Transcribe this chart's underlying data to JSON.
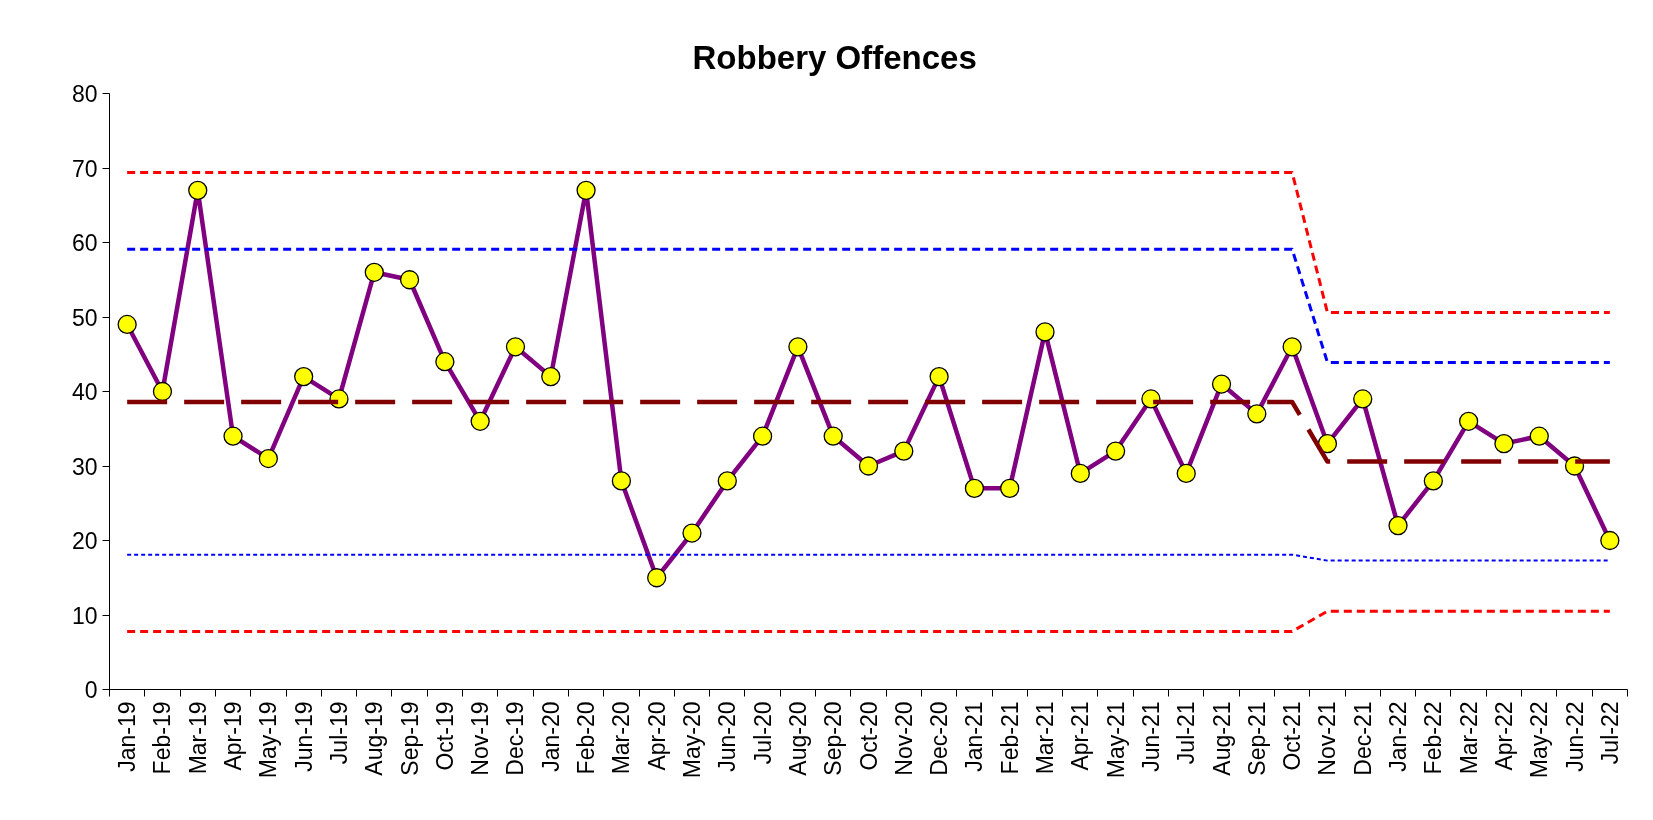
{
  "chart_data": {
    "type": "line",
    "title": "Robbery Offences",
    "categories": [
      "Jan-19",
      "Feb-19",
      "Mar-19",
      "Apr-19",
      "May-19",
      "Jun-19",
      "Jul-19",
      "Aug-19",
      "Sep-19",
      "Oct-19",
      "Nov-19",
      "Dec-19",
      "Jan-20",
      "Feb-20",
      "Mar-20",
      "Apr-20",
      "May-20",
      "Jun-20",
      "Jul-20",
      "Aug-20",
      "Sep-20",
      "Oct-20",
      "Nov-20",
      "Dec-20",
      "Jan-21",
      "Feb-21",
      "Mar-21",
      "Apr-21",
      "May-21",
      "Jun-21",
      "Jul-21",
      "Aug-21",
      "Sep-21",
      "Oct-21",
      "Nov-21",
      "Dec-21",
      "Jan-22",
      "Feb-22",
      "Mar-22",
      "Apr-22",
      "May-22",
      "Jun-22",
      "Jul-22"
    ],
    "series": [
      {
        "color": "#ff0000",
        "line_style": "dashed",
        "values": [
          69.4,
          69.4,
          69.4,
          69.4,
          69.4,
          69.4,
          69.4,
          69.4,
          69.4,
          69.4,
          69.4,
          69.4,
          69.4,
          69.4,
          69.4,
          69.4,
          69.4,
          69.4,
          69.4,
          69.4,
          69.4,
          69.4,
          69.4,
          69.4,
          69.4,
          69.4,
          69.4,
          69.4,
          69.4,
          69.4,
          69.4,
          69.4,
          69.4,
          69.4,
          50.6,
          50.6,
          50.6,
          50.6,
          50.6,
          50.6,
          50.6,
          50.6,
          50.6
        ]
      },
      {
        "color": "#0000ff",
        "line_style": "dashed",
        "values": [
          59.1,
          59.1,
          59.1,
          59.1,
          59.1,
          59.1,
          59.1,
          59.1,
          59.1,
          59.1,
          59.1,
          59.1,
          59.1,
          59.1,
          59.1,
          59.1,
          59.1,
          59.1,
          59.1,
          59.1,
          59.1,
          59.1,
          59.1,
          59.1,
          59.1,
          59.1,
          59.1,
          59.1,
          59.1,
          59.1,
          59.1,
          59.1,
          59.1,
          59.1,
          43.9,
          43.9,
          43.9,
          43.9,
          43.9,
          43.9,
          43.9,
          43.9,
          43.9
        ]
      },
      {
        "color": "#800000",
        "line_style": "dashed",
        "values": [
          38.6,
          38.6,
          38.6,
          38.6,
          38.6,
          38.6,
          38.6,
          38.6,
          38.6,
          38.6,
          38.6,
          38.6,
          38.6,
          38.6,
          38.6,
          38.6,
          38.6,
          38.6,
          38.6,
          38.6,
          38.6,
          38.6,
          38.6,
          38.6,
          38.6,
          38.6,
          38.6,
          38.6,
          38.6,
          38.6,
          38.6,
          38.6,
          38.6,
          38.6,
          30.6,
          30.6,
          30.6,
          30.6,
          30.6,
          30.6,
          30.6,
          30.6,
          30.6
        ]
      },
      {
        "color": "#0000ff",
        "line_style": "dotted",
        "values": [
          18.1,
          18.1,
          18.1,
          18.1,
          18.1,
          18.1,
          18.1,
          18.1,
          18.1,
          18.1,
          18.1,
          18.1,
          18.1,
          18.1,
          18.1,
          18.1,
          18.1,
          18.1,
          18.1,
          18.1,
          18.1,
          18.1,
          18.1,
          18.1,
          18.1,
          18.1,
          18.1,
          18.1,
          18.1,
          18.1,
          18.1,
          18.1,
          18.1,
          18.1,
          17.3,
          17.3,
          17.3,
          17.3,
          17.3,
          17.3,
          17.3,
          17.3,
          17.3
        ]
      },
      {
        "color": "#ff0000",
        "line_style": "dashed",
        "values": [
          7.8,
          7.8,
          7.8,
          7.8,
          7.8,
          7.8,
          7.8,
          7.8,
          7.8,
          7.8,
          7.8,
          7.8,
          7.8,
          7.8,
          7.8,
          7.8,
          7.8,
          7.8,
          7.8,
          7.8,
          7.8,
          7.8,
          7.8,
          7.8,
          7.8,
          7.8,
          7.8,
          7.8,
          7.8,
          7.8,
          7.8,
          7.8,
          7.8,
          7.8,
          10.5,
          10.5,
          10.5,
          10.5,
          10.5,
          10.5,
          10.5,
          10.5,
          10.5
        ]
      },
      {
        "color": "#800080",
        "line_style": "solid",
        "marker": "circle",
        "colors": [
          "#ffff00",
          "#ffff00",
          "#ffff00",
          "#ffff00",
          "#ffff00",
          "#ffff00",
          "#ffff00",
          "#ffff00",
          "#ffff00",
          "#ffff00",
          "#ffff00",
          "#ffff00",
          "#ffff00",
          "#ffff00",
          "#ffff00",
          "#ffff00",
          "#ffff00",
          "#ffff00",
          "#ffff00",
          "#ffff00",
          "#ffff00",
          "#ffff00",
          "#ffff00",
          "#ffff00",
          "#ffff00",
          "#ffff00",
          "#ffff00",
          "#ffff00",
          "#ffff00",
          "#ffff00",
          "#ffff00",
          "#ffff00",
          "#ffff00",
          "#ffff00",
          "#ffff00",
          "#ffff00",
          "#ffff00",
          "#ffff00",
          "#ffff00",
          "#ffff00",
          "#ffff00",
          "#ffff00",
          "#ffff00"
        ],
        "values": [
          49,
          40,
          67,
          34,
          31,
          42,
          39,
          56,
          55,
          44,
          36,
          46,
          42,
          67,
          28,
          15,
          21,
          28,
          34,
          46,
          34,
          30,
          32,
          42,
          27,
          27,
          48,
          29,
          32,
          39,
          29,
          41,
          37,
          46,
          33,
          39,
          22,
          28,
          36,
          33,
          34,
          30,
          20
        ]
      }
    ],
    "ylim": [
      0,
      80
    ],
    "yticks": [
      0,
      10,
      20,
      30,
      40,
      50,
      60,
      70,
      80
    ],
    "grid": false
  }
}
